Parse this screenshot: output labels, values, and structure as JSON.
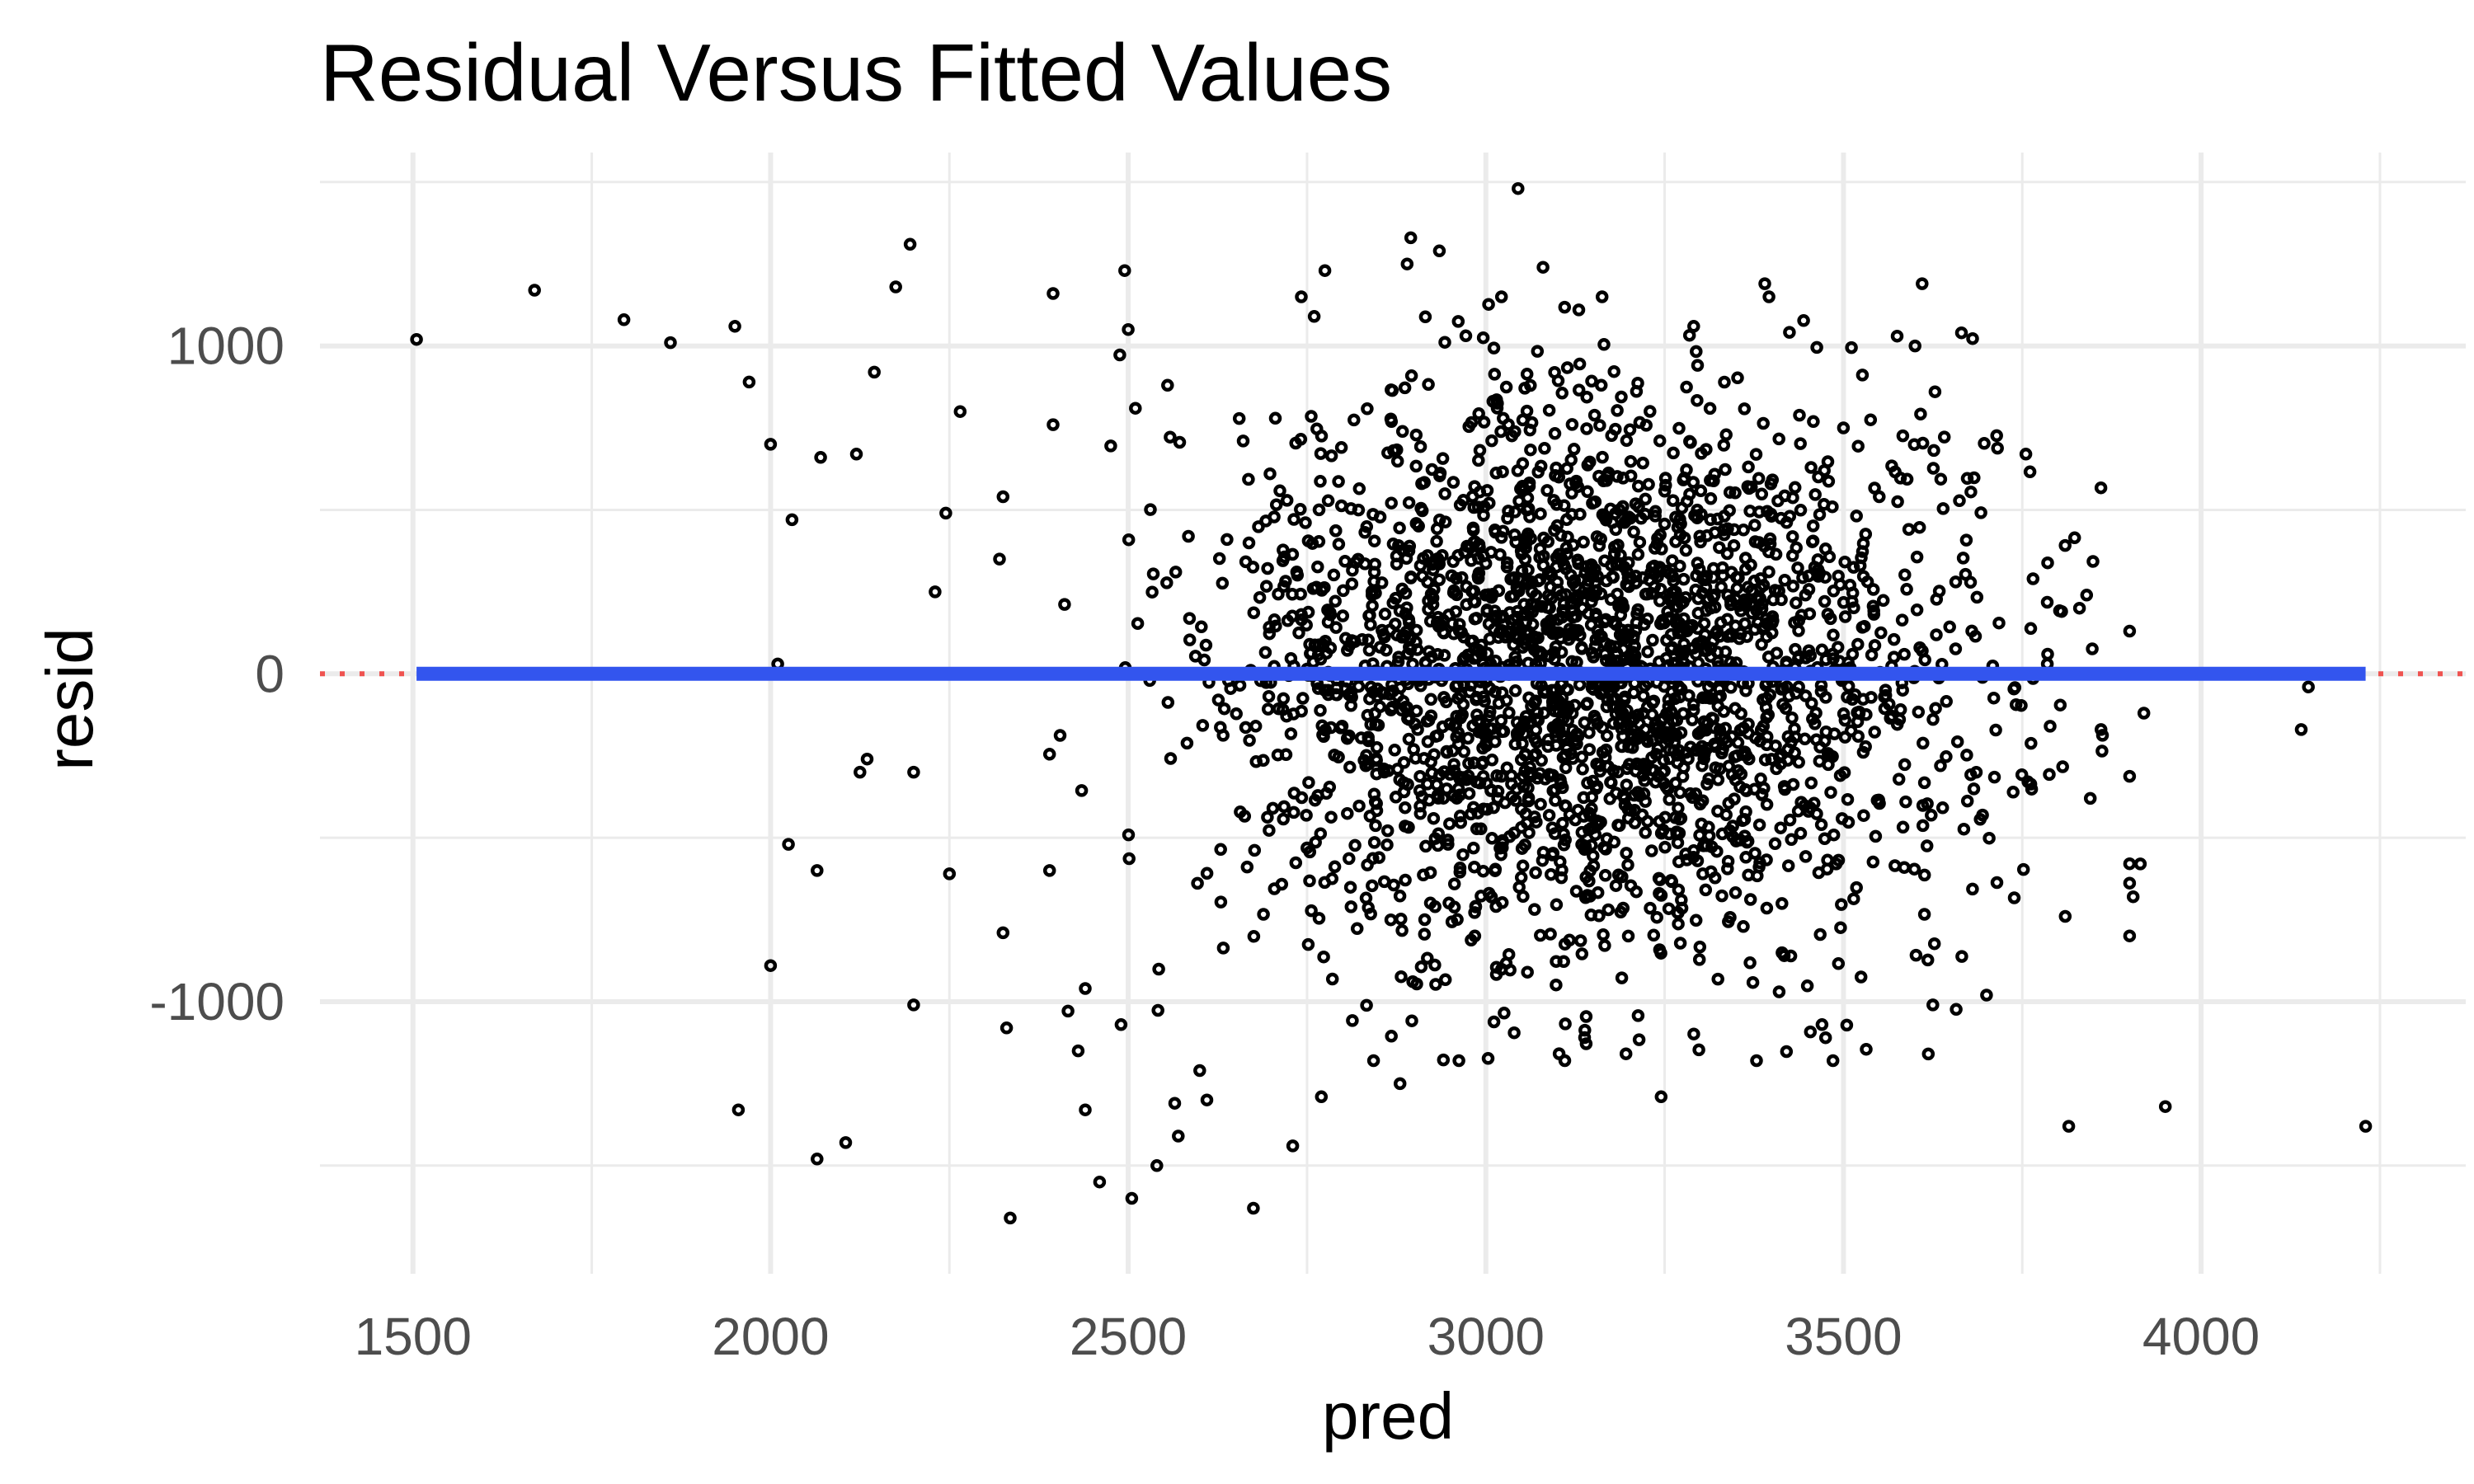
{
  "chart_data": {
    "type": "scatter",
    "title": "Residual Versus Fitted Values",
    "xlabel": "pred",
    "ylabel": "resid",
    "xlim": [
      1370,
      4370
    ],
    "ylim": [
      -1830,
      1590
    ],
    "x_ticks": [
      1500,
      2000,
      2500,
      3000,
      3500,
      4000
    ],
    "y_ticks": [
      -1000,
      0,
      1000
    ],
    "x_tick_labels": [
      "1500",
      "2000",
      "2500",
      "3000",
      "3500",
      "4000"
    ],
    "y_tick_labels": [
      "-1000",
      "0",
      "1000"
    ],
    "grid": true,
    "legend": "none",
    "reference_line": {
      "y": 0,
      "style": "dotted",
      "color": "#ef5350"
    },
    "fit_line": {
      "x_range": [
        1505,
        4230
      ],
      "y": 0,
      "color": "#3355ee"
    },
    "n_points": 2500,
    "random_seed": 7,
    "outliers": [
      [
        1505,
        1020
      ],
      [
        1670,
        1170
      ],
      [
        1795,
        1080
      ],
      [
        1860,
        1010
      ],
      [
        1950,
        1060
      ],
      [
        1970,
        890
      ],
      [
        2000,
        700
      ],
      [
        2010,
        30
      ],
      [
        2030,
        470
      ],
      [
        2025,
        -520
      ],
      [
        2000,
        -890
      ],
      [
        1955,
        -1330
      ],
      [
        2065,
        -1480
      ],
      [
        2105,
        -1430
      ],
      [
        2065,
        -600
      ],
      [
        2070,
        660
      ],
      [
        2120,
        670
      ],
      [
        2125,
        -300
      ],
      [
        2135,
        -260
      ],
      [
        2145,
        920
      ],
      [
        2175,
        1180
      ],
      [
        2195,
        1310
      ],
      [
        2200,
        -300
      ],
      [
        2200,
        -1010
      ],
      [
        2230,
        250
      ],
      [
        2245,
        490
      ],
      [
        2250,
        -610
      ],
      [
        2265,
        800
      ],
      [
        2320,
        350
      ],
      [
        2325,
        540
      ],
      [
        2325,
        -790
      ],
      [
        2330,
        -1080
      ],
      [
        2335,
        -1660
      ],
      [
        2390,
        -600
      ],
      [
        2395,
        760
      ],
      [
        2395,
        1160
      ],
      [
        2430,
        -1150
      ],
      [
        2440,
        -1330
      ],
      [
        2440,
        -960
      ],
      [
        2460,
        -1550
      ],
      [
        2490,
        -1070
      ],
      [
        2495,
        1230
      ],
      [
        2500,
        1050
      ],
      [
        2505,
        -1600
      ],
      [
        2510,
        810
      ],
      [
        2540,
        -1500
      ],
      [
        2555,
        880
      ],
      [
        2565,
        -1310
      ],
      [
        2570,
        -1410
      ],
      [
        2600,
        -1210
      ],
      [
        2610,
        -1300
      ],
      [
        2675,
        -1630
      ],
      [
        2730,
        -1440
      ],
      [
        2760,
        1090
      ],
      [
        2770,
        -1290
      ],
      [
        2775,
        1230
      ],
      [
        2880,
        -1250
      ],
      [
        2890,
        1250
      ],
      [
        2895,
        1330
      ],
      [
        2935,
        1290
      ],
      [
        3045,
        1480
      ],
      [
        3080,
        1240
      ],
      [
        3130,
        1110
      ],
      [
        3245,
        -1290
      ],
      [
        3390,
        1190
      ],
      [
        3410,
        -970
      ],
      [
        3470,
        -1070
      ],
      [
        3475,
        -1110
      ],
      [
        3500,
        750
      ],
      [
        3550,
        540
      ],
      [
        3575,
        1030
      ],
      [
        3600,
        1000
      ],
      [
        3610,
        1190
      ],
      [
        3625,
        -1010
      ],
      [
        3665,
        1040
      ],
      [
        3700,
        -980
      ],
      [
        3755,
        670
      ],
      [
        3765,
        290
      ],
      [
        3785,
        30
      ],
      [
        3805,
        190
      ],
      [
        3810,
        -740
      ],
      [
        3815,
        -1380
      ],
      [
        3830,
        200
      ],
      [
        3840,
        240
      ],
      [
        3845,
        -380
      ],
      [
        3860,
        -170
      ],
      [
        3905,
        -680
      ],
      [
        3915,
        -580
      ],
      [
        3920,
        -120
      ],
      [
        3950,
        -1320
      ],
      [
        4140,
        -170
      ],
      [
        4150,
        -40
      ],
      [
        4230,
        -1380
      ]
    ]
  }
}
